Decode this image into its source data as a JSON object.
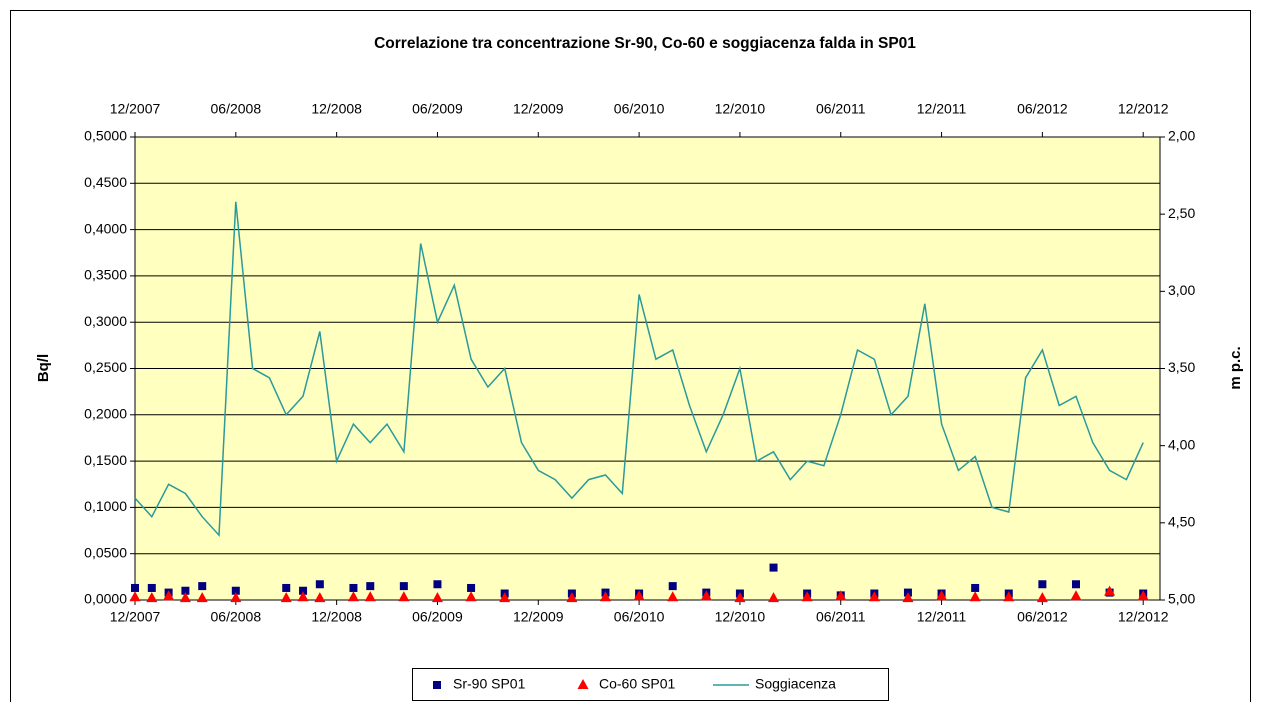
{
  "chart_data": {
    "type": "combo",
    "title": "Correlazione tra concentrazione Sr-90, Co-60 e soggiacenza falda in SP01",
    "ylabel": "Bq/l",
    "y2label": "m p.c.",
    "xlim": [
      "2007-12",
      "2013-01"
    ],
    "xticks": [
      {
        "value": "2007-12",
        "label": "12/2007"
      },
      {
        "value": "2008-06",
        "label": "06/2008"
      },
      {
        "value": "2008-12",
        "label": "12/2008"
      },
      {
        "value": "2009-06",
        "label": "06/2009"
      },
      {
        "value": "2009-12",
        "label": "12/2009"
      },
      {
        "value": "2010-06",
        "label": "06/2010"
      },
      {
        "value": "2010-12",
        "label": "12/2010"
      },
      {
        "value": "2011-06",
        "label": "06/2011"
      },
      {
        "value": "2011-12",
        "label": "12/2011"
      },
      {
        "value": "2012-06",
        "label": "06/2012"
      },
      {
        "value": "2012-12",
        "label": "12/2012"
      }
    ],
    "ylim": [
      0,
      0.5
    ],
    "yticks": [
      {
        "value": 0,
        "label": "0,0000"
      },
      {
        "value": 0.05,
        "label": "0,0500"
      },
      {
        "value": 0.1,
        "label": "0,1000"
      },
      {
        "value": 0.15,
        "label": "0,1500"
      },
      {
        "value": 0.2,
        "label": "0,2000"
      },
      {
        "value": 0.25,
        "label": "0,2500"
      },
      {
        "value": 0.3,
        "label": "0,3000"
      },
      {
        "value": 0.35,
        "label": "0,3500"
      },
      {
        "value": 0.4,
        "label": "0,4000"
      },
      {
        "value": 0.45,
        "label": "0,4500"
      },
      {
        "value": 0.5,
        "label": "0,5000"
      }
    ],
    "y2lim": [
      5,
      2
    ],
    "y2ticks": [
      {
        "value": 5,
        "label": "5,00"
      },
      {
        "value": 4.5,
        "label": "4,50"
      },
      {
        "value": 4,
        "label": "4,00"
      },
      {
        "value": 3.5,
        "label": "3,50"
      },
      {
        "value": 3,
        "label": "3,00"
      },
      {
        "value": 2.5,
        "label": "2,50"
      },
      {
        "value": 2,
        "label": "2,00"
      }
    ],
    "grid": true,
    "legend": "bottom",
    "series": [
      {
        "name": "Sr-90 SP01",
        "type": "scatter",
        "marker": "square",
        "color": "#000080",
        "x": [
          "2007-12",
          "2008-01",
          "2008-02",
          "2008-03",
          "2008-04",
          "2008-06",
          "2008-09",
          "2008-10",
          "2008-11",
          "2009-01",
          "2009-02",
          "2009-04",
          "2009-06",
          "2009-08",
          "2009-10",
          "2010-02",
          "2010-04",
          "2010-06",
          "2010-08",
          "2010-10",
          "2010-12",
          "2011-02",
          "2011-04",
          "2011-06",
          "2011-08",
          "2011-10",
          "2011-12",
          "2012-02",
          "2012-04",
          "2012-06",
          "2012-08",
          "2012-10",
          "2012-12"
        ],
        "values": [
          0.013,
          0.013,
          0.008,
          0.01,
          0.015,
          0.01,
          0.013,
          0.01,
          0.017,
          0.013,
          0.015,
          0.015,
          0.017,
          0.013,
          0.007,
          0.007,
          0.008,
          0.007,
          0.015,
          0.008,
          0.007,
          0.035,
          0.007,
          0.005,
          0.007,
          0.008,
          0.007,
          0.013,
          0.007,
          0.017,
          0.017,
          0.008,
          0.007
        ]
      },
      {
        "name": "Co-60 SP01",
        "type": "scatter",
        "marker": "triangle",
        "color": "#ff0000",
        "x": [
          "2007-12",
          "2008-01",
          "2008-02",
          "2008-03",
          "2008-04",
          "2008-06",
          "2008-09",
          "2008-10",
          "2008-11",
          "2009-01",
          "2009-02",
          "2009-04",
          "2009-06",
          "2009-08",
          "2009-10",
          "2010-02",
          "2010-04",
          "2010-06",
          "2010-08",
          "2010-10",
          "2010-12",
          "2011-02",
          "2011-04",
          "2011-06",
          "2011-08",
          "2011-10",
          "2011-12",
          "2012-02",
          "2012-04",
          "2012-06",
          "2012-08",
          "2012-10",
          "2012-12"
        ],
        "values": [
          0.003,
          0.002,
          0.004,
          0.002,
          0.002,
          0.002,
          0.002,
          0.003,
          0.002,
          0.003,
          0.003,
          0.003,
          0.002,
          0.003,
          0.002,
          0.002,
          0.003,
          0.004,
          0.003,
          0.004,
          0.002,
          0.002,
          0.003,
          0.004,
          0.003,
          0.002,
          0.004,
          0.003,
          0.003,
          0.002,
          0.004,
          0.009,
          0.004
        ]
      },
      {
        "name": "Soggiacenza",
        "type": "line",
        "marker": "line",
        "color": "#2a9a9a",
        "axis": "y2",
        "x": [
          "2007-12",
          "2008-01",
          "2008-02",
          "2008-03",
          "2008-04",
          "2008-05",
          "2008-06",
          "2008-07",
          "2008-08",
          "2008-09",
          "2008-10",
          "2008-11",
          "2008-12",
          "2009-01",
          "2009-02",
          "2009-03",
          "2009-04",
          "2009-05",
          "2009-06",
          "2009-07",
          "2009-08",
          "2009-09",
          "2009-10",
          "2009-11",
          "2009-12",
          "2010-01",
          "2010-02",
          "2010-03",
          "2010-04",
          "2010-05",
          "2010-06",
          "2010-07",
          "2010-08",
          "2010-09",
          "2010-10",
          "2010-11",
          "2010-12",
          "2011-01",
          "2011-02",
          "2011-03",
          "2011-04",
          "2011-05",
          "2011-06",
          "2011-07",
          "2011-08",
          "2011-09",
          "2011-10",
          "2011-11",
          "2011-12",
          "2012-01",
          "2012-02",
          "2012-03",
          "2012-04",
          "2012-05",
          "2012-06",
          "2012-07",
          "2012-08",
          "2012-09",
          "2012-10",
          "2012-11",
          "2012-12"
        ],
        "values": [
          4.34,
          4.46,
          4.25,
          4.31,
          4.46,
          4.58,
          2.42,
          3.5,
          3.56,
          3.8,
          3.68,
          3.26,
          4.1,
          3.86,
          3.98,
          3.86,
          4.04,
          2.69,
          3.2,
          2.96,
          3.44,
          3.62,
          3.5,
          3.98,
          4.16,
          4.22,
          4.34,
          4.22,
          4.19,
          4.31,
          3.02,
          3.44,
          3.38,
          3.74,
          4.04,
          3.8,
          3.5,
          4.1,
          4.04,
          4.22,
          4.1,
          4.13,
          3.8,
          3.38,
          3.44,
          3.8,
          3.68,
          3.08,
          3.86,
          4.16,
          4.07,
          4.4,
          4.43,
          3.56,
          3.38,
          3.74,
          3.68,
          3.98,
          4.16,
          4.22,
          3.98
        ]
      }
    ]
  }
}
